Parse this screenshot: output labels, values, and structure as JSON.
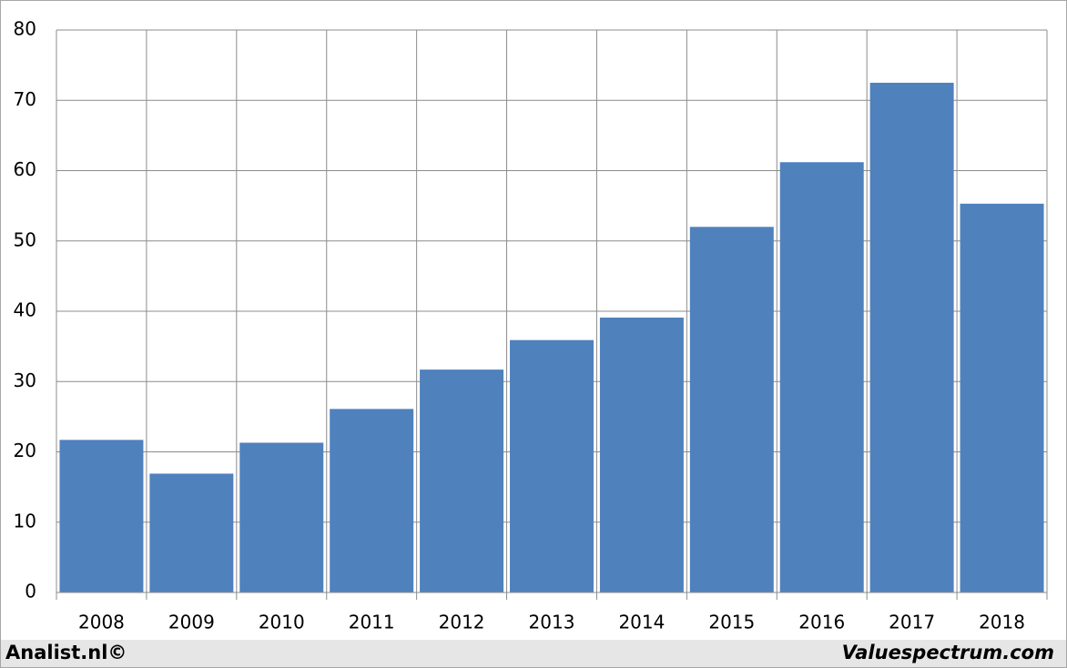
{
  "chart_data": {
    "type": "bar",
    "categories": [
      "2008",
      "2009",
      "2010",
      "2011",
      "2012",
      "2013",
      "2014",
      "2015",
      "2016",
      "2017",
      "2018"
    ],
    "values": [
      21.7,
      16.9,
      21.3,
      26.1,
      31.7,
      35.9,
      39.1,
      52.0,
      61.2,
      72.5,
      55.3
    ],
    "color": "#4f81bd",
    "ylim": [
      0,
      80
    ],
    "yticks": [
      0,
      10,
      20,
      30,
      40,
      50,
      60,
      70,
      80
    ],
    "grid": true,
    "credits": [
      "Analist.nl©",
      "Valuespectrum.com"
    ]
  }
}
